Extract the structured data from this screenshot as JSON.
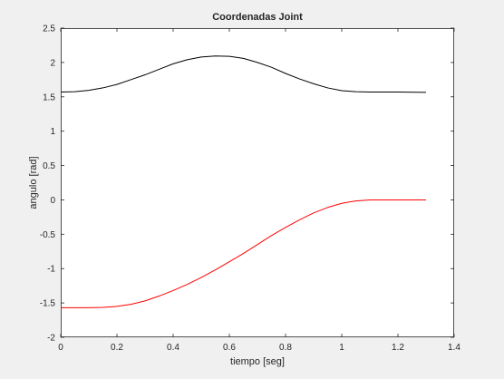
{
  "window": {
    "background": "#f0f0f0"
  },
  "chart_data": {
    "type": "line",
    "title": "Coordenadas Joint",
    "xlabel": "tiempo [seg]",
    "ylabel": "angulo [rad]",
    "xlim": [
      0,
      1.4
    ],
    "ylim": [
      -2,
      2.5
    ],
    "xticks": [
      "0",
      "0.2",
      "0.4",
      "0.6",
      "0.8",
      "1",
      "1.2",
      "1.4"
    ],
    "yticks": [
      "-2",
      "-1.5",
      "-1",
      "-0.5",
      "0",
      "0.5",
      "1",
      "1.5",
      "2",
      "2.5"
    ],
    "grid": false,
    "legend": "none",
    "series": [
      {
        "color": "#000000",
        "x": [
          0,
          0.05,
          0.1,
          0.15,
          0.2,
          0.25,
          0.3,
          0.35,
          0.4,
          0.45,
          0.5,
          0.55,
          0.6,
          0.65,
          0.7,
          0.75,
          0.8,
          0.85,
          0.9,
          0.95,
          1.0,
          1.05,
          1.1,
          1.2,
          1.3
        ],
        "y": [
          1.57,
          1.575,
          1.595,
          1.63,
          1.68,
          1.75,
          1.82,
          1.9,
          1.98,
          2.04,
          2.08,
          2.095,
          2.09,
          2.06,
          2.0,
          1.93,
          1.84,
          1.76,
          1.69,
          1.63,
          1.59,
          1.575,
          1.57,
          1.57,
          1.565
        ]
      },
      {
        "color": "#ff0000",
        "x": [
          0,
          0.1,
          0.15,
          0.2,
          0.25,
          0.3,
          0.35,
          0.4,
          0.45,
          0.5,
          0.55,
          0.6,
          0.65,
          0.7,
          0.75,
          0.8,
          0.85,
          0.9,
          0.95,
          1.0,
          1.05,
          1.1,
          1.2,
          1.3
        ],
        "y": [
          -1.57,
          -1.57,
          -1.565,
          -1.55,
          -1.52,
          -1.47,
          -1.4,
          -1.32,
          -1.23,
          -1.13,
          -1.02,
          -0.9,
          -0.78,
          -0.65,
          -0.52,
          -0.4,
          -0.29,
          -0.19,
          -0.11,
          -0.05,
          -0.015,
          0.0,
          0.0,
          0.0
        ]
      }
    ]
  }
}
